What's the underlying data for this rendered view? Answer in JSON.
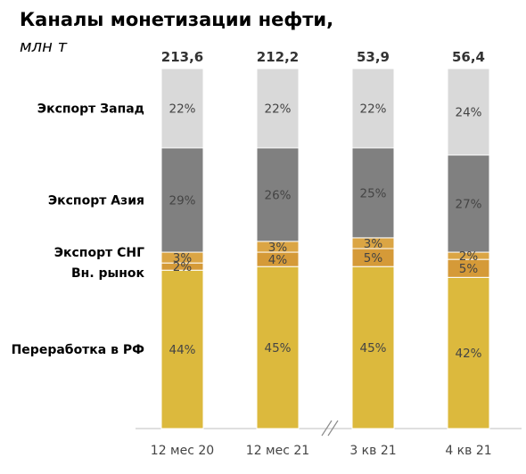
{
  "title": "Каналы монетизации нефти,",
  "subtitle": "млн т",
  "chart_data": {
    "type": "bar",
    "stacked": true,
    "normalized": true,
    "categories": [
      "12 мес 20",
      "12 мес 21",
      "3 кв 21",
      "4 кв 21"
    ],
    "totals": [
      "213,6",
      "212,2",
      "53,9",
      "56,4"
    ],
    "axis_break_between": [
      "12 мес 21",
      "3 кв 21"
    ],
    "series": [
      {
        "name": "Переработка в РФ",
        "color": "#dcb93d",
        "values": [
          44,
          45,
          45,
          42
        ],
        "labels": [
          "44%",
          "45%",
          "45%",
          "42%"
        ]
      },
      {
        "name": "Вн. рынок",
        "color": "#d59a38",
        "values": [
          2,
          4,
          5,
          5
        ],
        "labels": [
          "2%",
          "4%",
          "5%",
          "5%"
        ]
      },
      {
        "name": "Экспорт СНГ",
        "color": "#dba544",
        "values": [
          3,
          3,
          3,
          2
        ],
        "labels": [
          "3%",
          "3%",
          "3%",
          "2%"
        ]
      },
      {
        "name": "Экспорт Азия",
        "color": "#808080",
        "values": [
          29,
          26,
          25,
          27
        ],
        "labels": [
          "29%",
          "26%",
          "25%",
          "27%"
        ]
      },
      {
        "name": "Экспорт Запад",
        "color": "#d9d9d9",
        "values": [
          22,
          22,
          22,
          24
        ],
        "labels": [
          "22%",
          "22%",
          "22%",
          "24%"
        ]
      }
    ]
  }
}
